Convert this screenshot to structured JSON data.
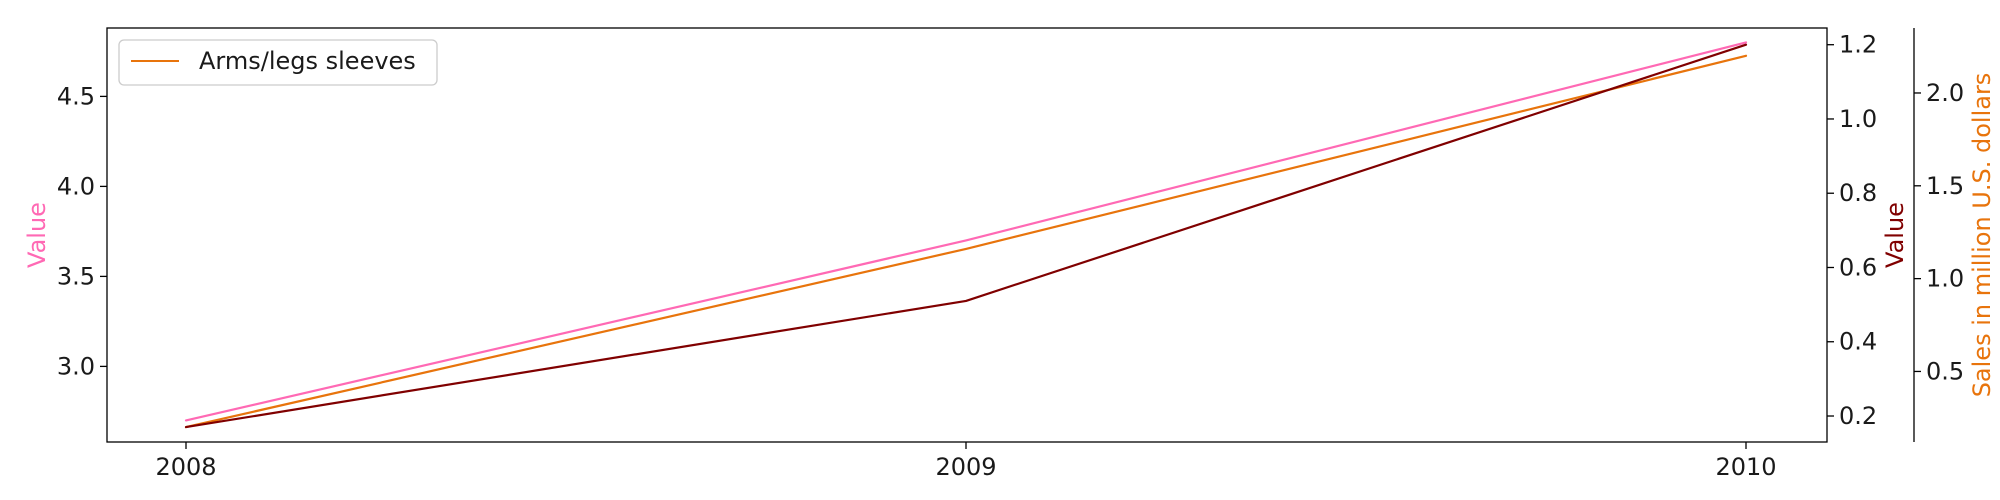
{
  "chart_data": {
    "type": "line",
    "x": [
      "2008",
      "2009",
      "2010"
    ],
    "axes": {
      "left": {
        "label": "Value",
        "label_color": "#ff69b4",
        "ylim": [
          2.58,
          4.88
        ],
        "ticks": [
          3.0,
          3.5,
          4.0,
          4.5
        ],
        "tick_labels": [
          "3.0",
          "3.5",
          "4.0",
          "4.5"
        ]
      },
      "right1": {
        "label": "Value",
        "label_color": "#800000",
        "ylim": [
          0.13,
          1.245
        ],
        "ticks": [
          0.2,
          0.4,
          0.6,
          0.8,
          1.0,
          1.2
        ],
        "tick_labels": [
          "0.2",
          "0.4",
          "0.6",
          "0.8",
          "1.0",
          "1.2"
        ]
      },
      "right2": {
        "label": "Sales in million U.S. dollars",
        "label_color": "#e8740c",
        "ylim": [
          0.12,
          2.35
        ],
        "ticks": [
          0.5,
          1.0,
          1.5,
          2.0
        ],
        "tick_labels": [
          "0.5",
          "1.0",
          "1.5",
          "2.0"
        ]
      }
    },
    "series": [
      {
        "axis": "left",
        "color": "#ff69b4",
        "values": [
          2.7,
          3.7,
          4.8
        ]
      },
      {
        "axis": "right2",
        "color": "#e8740c",
        "name": "Arms/legs sleeves",
        "values": [
          0.2,
          1.16,
          2.2
        ]
      },
      {
        "axis": "right1",
        "color": "#800000",
        "values": [
          0.17,
          0.51,
          1.2
        ]
      }
    ],
    "legend": {
      "position": "upper-left"
    },
    "grid": false
  }
}
